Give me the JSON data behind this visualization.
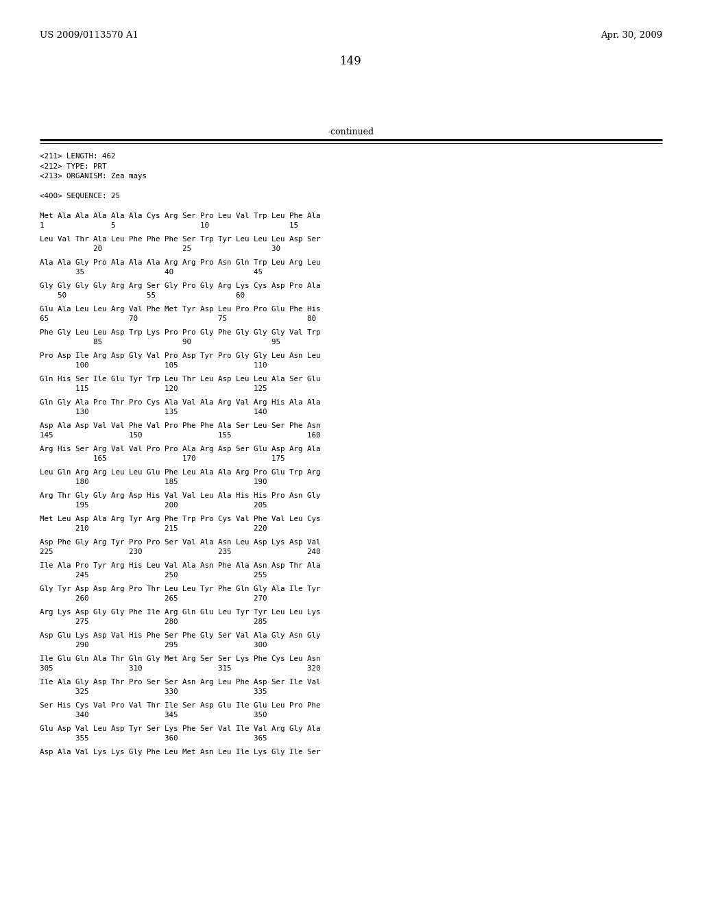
{
  "header_left": "US 2009/0113570 A1",
  "header_right": "Apr. 30, 2009",
  "page_number": "149",
  "continued_text": "-continued",
  "metadata": [
    "<211> LENGTH: 462",
    "<212> TYPE: PRT",
    "<213> ORGANISM: Zea mays"
  ],
  "sequence_header": "<400> SEQUENCE: 25",
  "sequence_blocks": [
    {
      "seq": "Met Ala Ala Ala Ala Ala Cys Arg Ser Pro Leu Val Trp Leu Phe Ala",
      "num": "1               5                   10                  15"
    },
    {
      "seq": "Leu Val Thr Ala Leu Phe Phe Phe Ser Trp Tyr Leu Leu Leu Asp Ser",
      "num": "            20                  25                  30"
    },
    {
      "seq": "Ala Ala Gly Pro Ala Ala Ala Arg Arg Pro Asn Gln Trp Leu Arg Leu",
      "num": "        35                  40                  45"
    },
    {
      "seq": "Gly Gly Gly Gly Arg Arg Ser Gly Pro Gly Arg Lys Cys Asp Pro Ala",
      "num": "    50                  55                  60"
    },
    {
      "seq": "Glu Ala Leu Leu Arg Val Phe Met Tyr Asp Leu Pro Pro Glu Phe His",
      "num": "65                  70                  75                  80"
    },
    {
      "seq": "Phe Gly Leu Leu Asp Trp Lys Pro Pro Gly Phe Gly Gly Gly Val Trp",
      "num": "            85                  90                  95"
    },
    {
      "seq": "Pro Asp Ile Arg Asp Gly Val Pro Asp Tyr Pro Gly Gly Leu Asn Leu",
      "num": "        100                 105                 110"
    },
    {
      "seq": "Gln His Ser Ile Glu Tyr Trp Leu Thr Leu Asp Leu Leu Ala Ser Glu",
      "num": "        115                 120                 125"
    },
    {
      "seq": "Gln Gly Ala Pro Thr Pro Cys Ala Val Ala Arg Val Arg His Ala Ala",
      "num": "        130                 135                 140"
    },
    {
      "seq": "Asp Ala Asp Val Val Phe Val Pro Phe Phe Ala Ser Leu Ser Phe Asn",
      "num": "145                 150                 155                 160"
    },
    {
      "seq": "Arg His Ser Arg Val Val Pro Pro Ala Arg Asp Ser Glu Asp Arg Ala",
      "num": "            165                 170                 175"
    },
    {
      "seq": "Leu Gln Arg Arg Leu Leu Glu Phe Leu Ala Ala Arg Pro Glu Trp Arg",
      "num": "        180                 185                 190"
    },
    {
      "seq": "Arg Thr Gly Gly Arg Asp His Val Val Leu Ala His His Pro Asn Gly",
      "num": "        195                 200                 205"
    },
    {
      "seq": "Met Leu Asp Ala Arg Tyr Arg Phe Trp Pro Cys Val Phe Val Leu Cys",
      "num": "        210                 215                 220"
    },
    {
      "seq": "Asp Phe Gly Arg Tyr Pro Pro Ser Val Ala Asn Leu Asp Lys Asp Val",
      "num": "225                 230                 235                 240"
    },
    {
      "seq": "Ile Ala Pro Tyr Arg His Leu Val Ala Asn Phe Ala Asn Asp Thr Ala",
      "num": "        245                 250                 255"
    },
    {
      "seq": "Gly Tyr Asp Asp Arg Pro Thr Leu Leu Tyr Phe Gln Gly Ala Ile Tyr",
      "num": "        260                 265                 270"
    },
    {
      "seq": "Arg Lys Asp Gly Gly Phe Ile Arg Gln Glu Leu Tyr Tyr Leu Leu Lys",
      "num": "        275                 280                 285"
    },
    {
      "seq": "Asp Glu Lys Asp Val His Phe Ser Phe Gly Ser Val Ala Gly Asn Gly",
      "num": "        290                 295                 300"
    },
    {
      "seq": "Ile Glu Gln Ala Thr Gln Gly Met Arg Ser Ser Lys Phe Cys Leu Asn",
      "num": "305                 310                 315                 320"
    },
    {
      "seq": "Ile Ala Gly Asp Thr Pro Ser Ser Asn Arg Leu Phe Asp Ser Ile Val",
      "num": "        325                 330                 335"
    },
    {
      "seq": "Ser His Cys Val Pro Val Thr Ile Ser Asp Glu Ile Glu Leu Pro Phe",
      "num": "        340                 345                 350"
    },
    {
      "seq": "Glu Asp Val Leu Asp Tyr Ser Lys Phe Ser Val Ile Val Arg Gly Ala",
      "num": "        355                 360                 365"
    },
    {
      "seq": "Asp Ala Val Lys Lys Gly Phe Leu Met Asn Leu Ile Lys Gly Ile Ser",
      "num": ""
    }
  ],
  "background_color": "#ffffff",
  "text_color": "#000000"
}
